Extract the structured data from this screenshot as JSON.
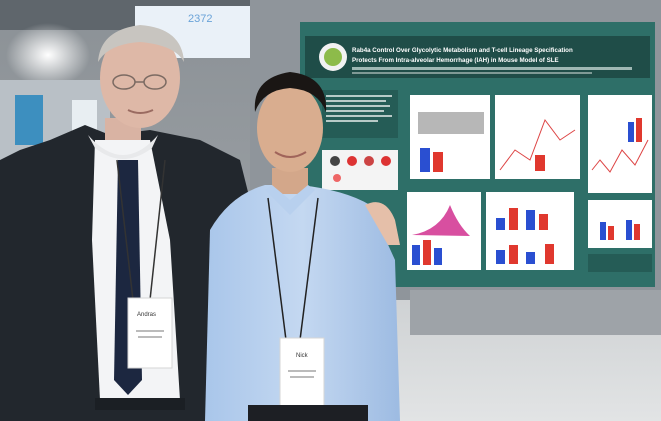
{
  "poster": {
    "title_line1": "Rab4a Control Over Glycolytic Metabolism and T-cell Lineage Specification",
    "title_line2": "Protects From Intra-alveolar Hemorrhage (IAH) in Mouse Model of SLE",
    "colors": {
      "board": "#2e6f68",
      "title_bar": "#1f4d48",
      "panel": "#ffffff",
      "bar_blue": "#2a4fd1",
      "bar_red": "#e0382e",
      "accent_pink": "#d84fa0"
    }
  },
  "people": {
    "left_badge_text": "Andras",
    "right_badge_text": "Nick"
  },
  "background": {
    "top_poster_text": "2372"
  }
}
